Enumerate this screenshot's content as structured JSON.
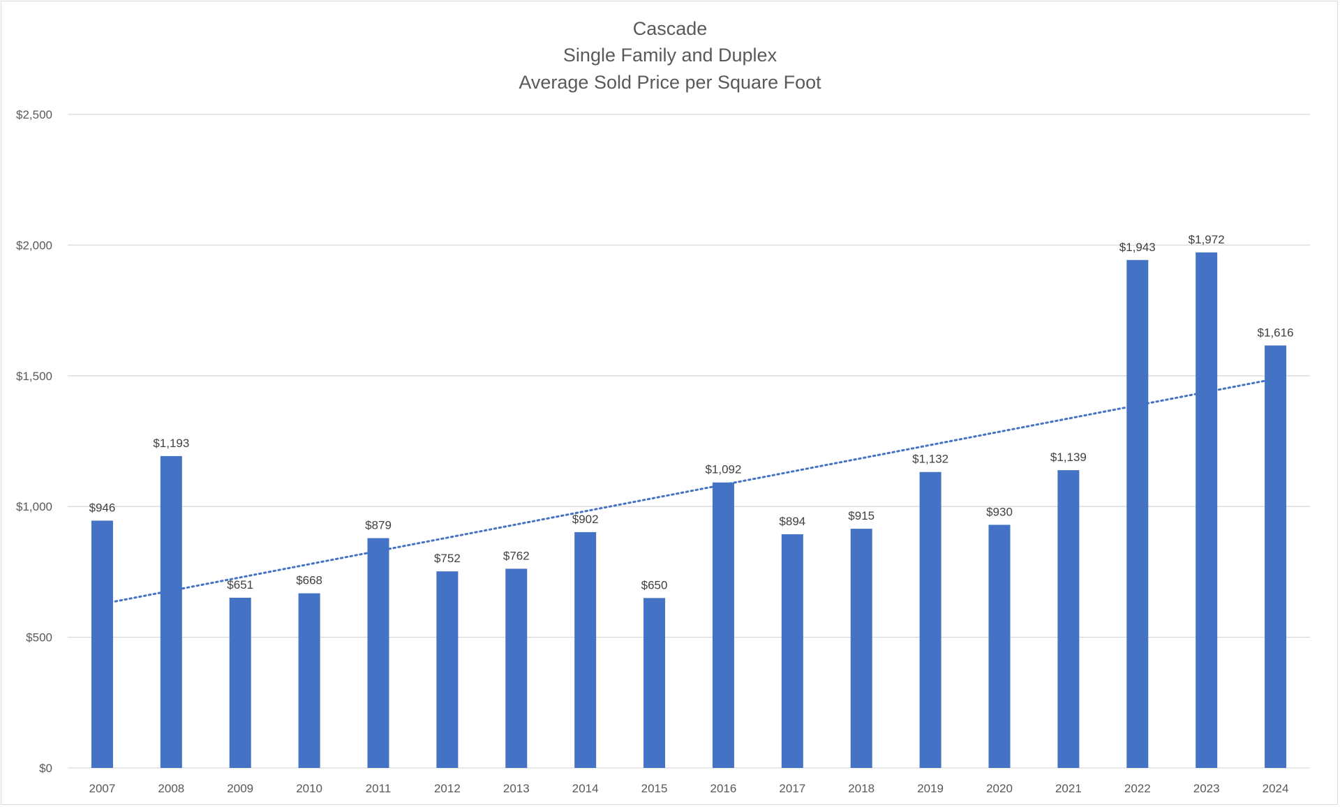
{
  "chart_data": {
    "type": "bar",
    "title_lines": [
      "Cascade",
      "Single Family and Duplex",
      "Average Sold Price per Square Foot"
    ],
    "xlabel": "",
    "ylabel": "",
    "categories": [
      "2007",
      "2008",
      "2009",
      "2010",
      "2011",
      "2012",
      "2013",
      "2014",
      "2015",
      "2016",
      "2017",
      "2018",
      "2019",
      "2020",
      "2021",
      "2022",
      "2023",
      "2024"
    ],
    "values": [
      946,
      1193,
      651,
      668,
      879,
      752,
      762,
      902,
      650,
      1092,
      894,
      915,
      1132,
      930,
      1139,
      1943,
      1972,
      1616
    ],
    "data_labels": [
      "$946",
      "$1,193",
      "$651",
      "$668",
      "$879",
      "$752",
      "$762",
      "$902",
      "$650",
      "$1,092",
      "$894",
      "$915",
      "$1,132",
      "$930",
      "$1,139",
      "$1,943",
      "$1,972",
      "$1,616"
    ],
    "ylim": [
      0,
      2500
    ],
    "yticks": [
      0,
      500,
      1000,
      1500,
      2000,
      2500
    ],
    "ytick_labels": [
      "$0",
      "$500",
      "$1,000",
      "$1,500",
      "$2,000",
      "$2,500"
    ],
    "grid": true,
    "legend": "none",
    "trendline": {
      "type": "linear",
      "style": "dotted",
      "start_value": 630,
      "end_value": 1485
    },
    "colors": {
      "bar": "#4472c4",
      "gridline": "#d9d9d9",
      "text": "#595959",
      "data_label": "#404040"
    }
  }
}
